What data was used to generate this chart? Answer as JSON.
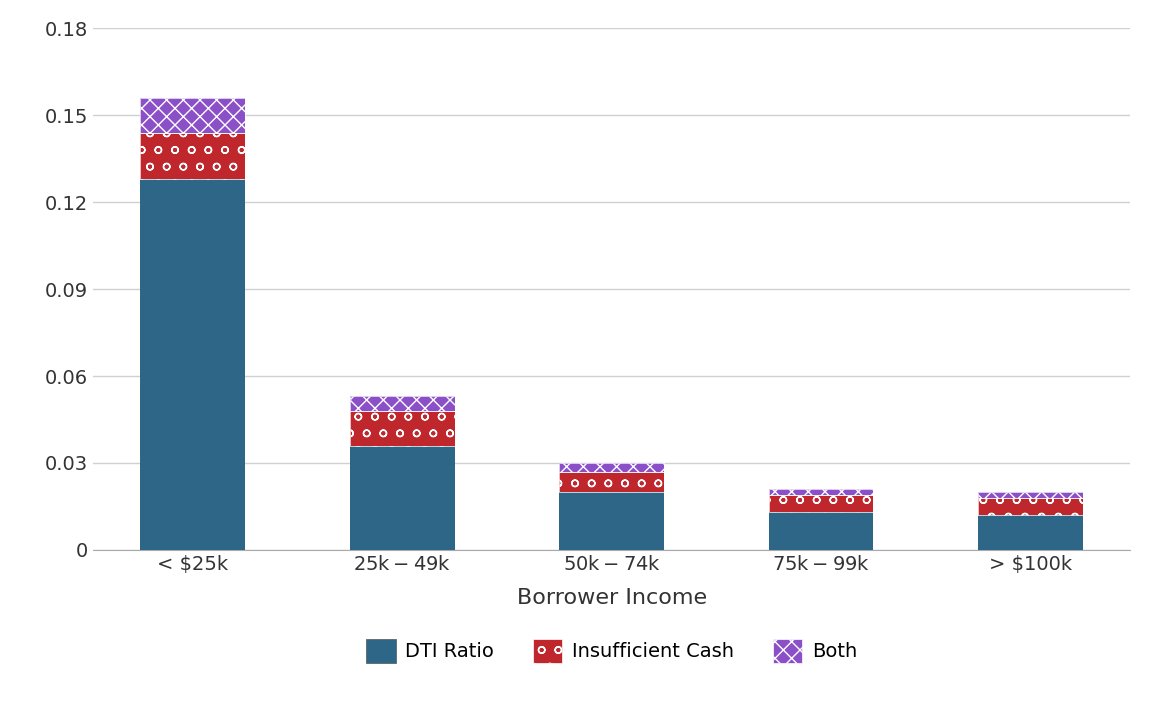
{
  "categories": [
    "< $25k",
    "$25k-$49k",
    "$50k-$74k",
    "$75k-$99k",
    "> $100k"
  ],
  "dti_values": [
    0.128,
    0.036,
    0.02,
    0.013,
    0.012
  ],
  "cash_values": [
    0.016,
    0.012,
    0.007,
    0.006,
    0.006
  ],
  "both_values": [
    0.012,
    0.005,
    0.003,
    0.002,
    0.002
  ],
  "dti_color": "#2E6688",
  "cash_color": "#C0272D",
  "both_color": "#8B4FC8",
  "background_color": "#FFFFFF",
  "xlabel": "Borrower Income",
  "ylim": [
    0,
    0.18
  ],
  "yticks": [
    0,
    0.03,
    0.06,
    0.09,
    0.12,
    0.15,
    0.18
  ],
  "ytick_labels": [
    "0",
    "0.03",
    "0.06",
    "0.09",
    "0.12",
    "0.15",
    "0.18"
  ],
  "legend_labels": [
    "DTI Ratio",
    "Insufficient Cash",
    "Both"
  ],
  "bar_width": 0.5,
  "grid_color": "#D0D0D0",
  "xlabel_fontsize": 16,
  "tick_fontsize": 14,
  "legend_fontsize": 14
}
